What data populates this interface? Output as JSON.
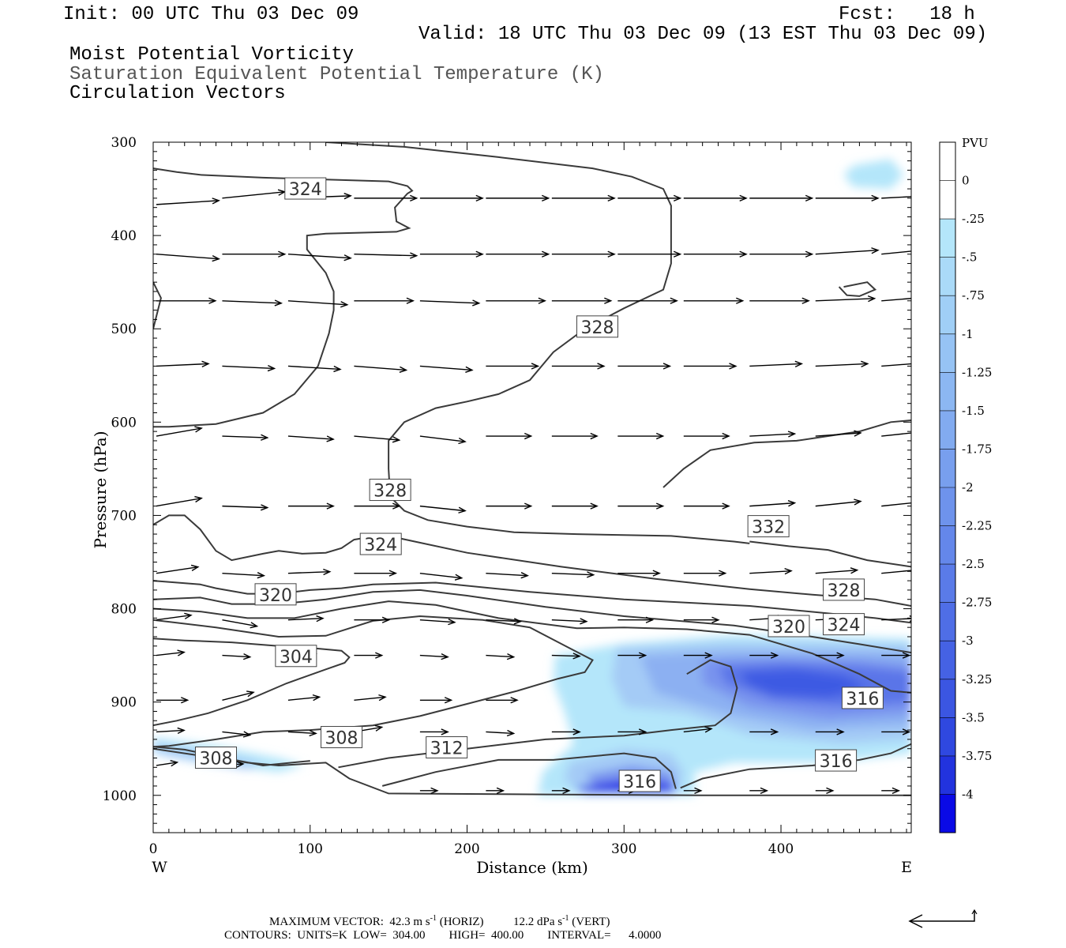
{
  "header": {
    "init": "Init: 00 UTC Thu 03 Dec 09",
    "fcst": "Fcst:   18 h",
    "valid": "Valid: 18 UTC Thu 03 Dec 09 (13 EST Thu 03 Dec 09)",
    "field1": "Moist Potential Vorticity",
    "field2": "Saturation Equivalent Potential Temperature (K)",
    "field3": "Circulation Vectors"
  },
  "colors": {
    "contour": "#3a3a3a",
    "vector": "#000000"
  },
  "chart_data": {
    "type": "cross-section contour",
    "xlabel": "Distance (km)",
    "ylabel": "Pressure (hPa)",
    "xlim": [
      0,
      483
    ],
    "ylim": [
      1040,
      300
    ],
    "x_ticks": [
      0,
      100,
      200,
      300,
      400
    ],
    "y_ticks": [
      300,
      400,
      500,
      600,
      700,
      800,
      900,
      1000
    ],
    "west_label": "W",
    "east_label": "E",
    "colorbar": {
      "unit": "PVU",
      "levels": [
        "0",
        "-.25",
        "-.5",
        "-.75",
        "-1",
        "-1.25",
        "-1.5",
        "-1.75",
        "-2",
        "-2.25",
        "-2.5",
        "-2.75",
        "-3",
        "-3.25",
        "-3.5",
        "-3.75",
        "-4"
      ],
      "colors": [
        "#ffffff",
        "#ffffff",
        "#b4e6fa",
        "#aadaf8",
        "#a0cff6",
        "#96c3f4",
        "#8cb7f2",
        "#82abf0",
        "#789fee",
        "#6e93ec",
        "#6487ea",
        "#5a7be8",
        "#4f6ee6",
        "#4562e4",
        "#3b56e2",
        "#2f48e0",
        "#2233de",
        "#0a0ae6"
      ]
    },
    "contour_labels": [
      {
        "text": "324",
        "x": 97,
        "p": 350
      },
      {
        "text": "328",
        "x": 283,
        "p": 498
      },
      {
        "text": "328",
        "x": 151,
        "p": 673
      },
      {
        "text": "324",
        "x": 145,
        "p": 731
      },
      {
        "text": "332",
        "x": 392,
        "p": 712
      },
      {
        "text": "320",
        "x": 78,
        "p": 785
      },
      {
        "text": "328",
        "x": 440,
        "p": 780
      },
      {
        "text": "324",
        "x": 440,
        "p": 817
      },
      {
        "text": "320",
        "x": 405,
        "p": 819
      },
      {
        "text": "304",
        "x": 91,
        "p": 851
      },
      {
        "text": "316",
        "x": 452,
        "p": 896
      },
      {
        "text": "308",
        "x": 120,
        "p": 938
      },
      {
        "text": "312",
        "x": 187,
        "p": 949
      },
      {
        "text": "308",
        "x": 40,
        "p": 960
      },
      {
        "text": "316",
        "x": 435,
        "p": 963
      },
      {
        "text": "316",
        "x": 310,
        "p": 985
      }
    ],
    "max_vector_horiz": "42.3 m s",
    "max_vector_vert": "12.2 dPa s",
    "contour_units": "K",
    "contour_low": "304.00",
    "contour_high": "400.00",
    "contour_interval": "4.0000"
  },
  "footer": {
    "line1_prefix": "MAXIMUM VECTOR:  42.3 m s",
    "line1_mid": " (HORIZ)          12.2 dPa s",
    "line1_end": " (VERT)",
    "sup": "-1",
    "line2": "CONTOURS:  UNITS=K  LOW=  304.00        HIGH=  400.00        INTERVAL=      4.0000"
  }
}
